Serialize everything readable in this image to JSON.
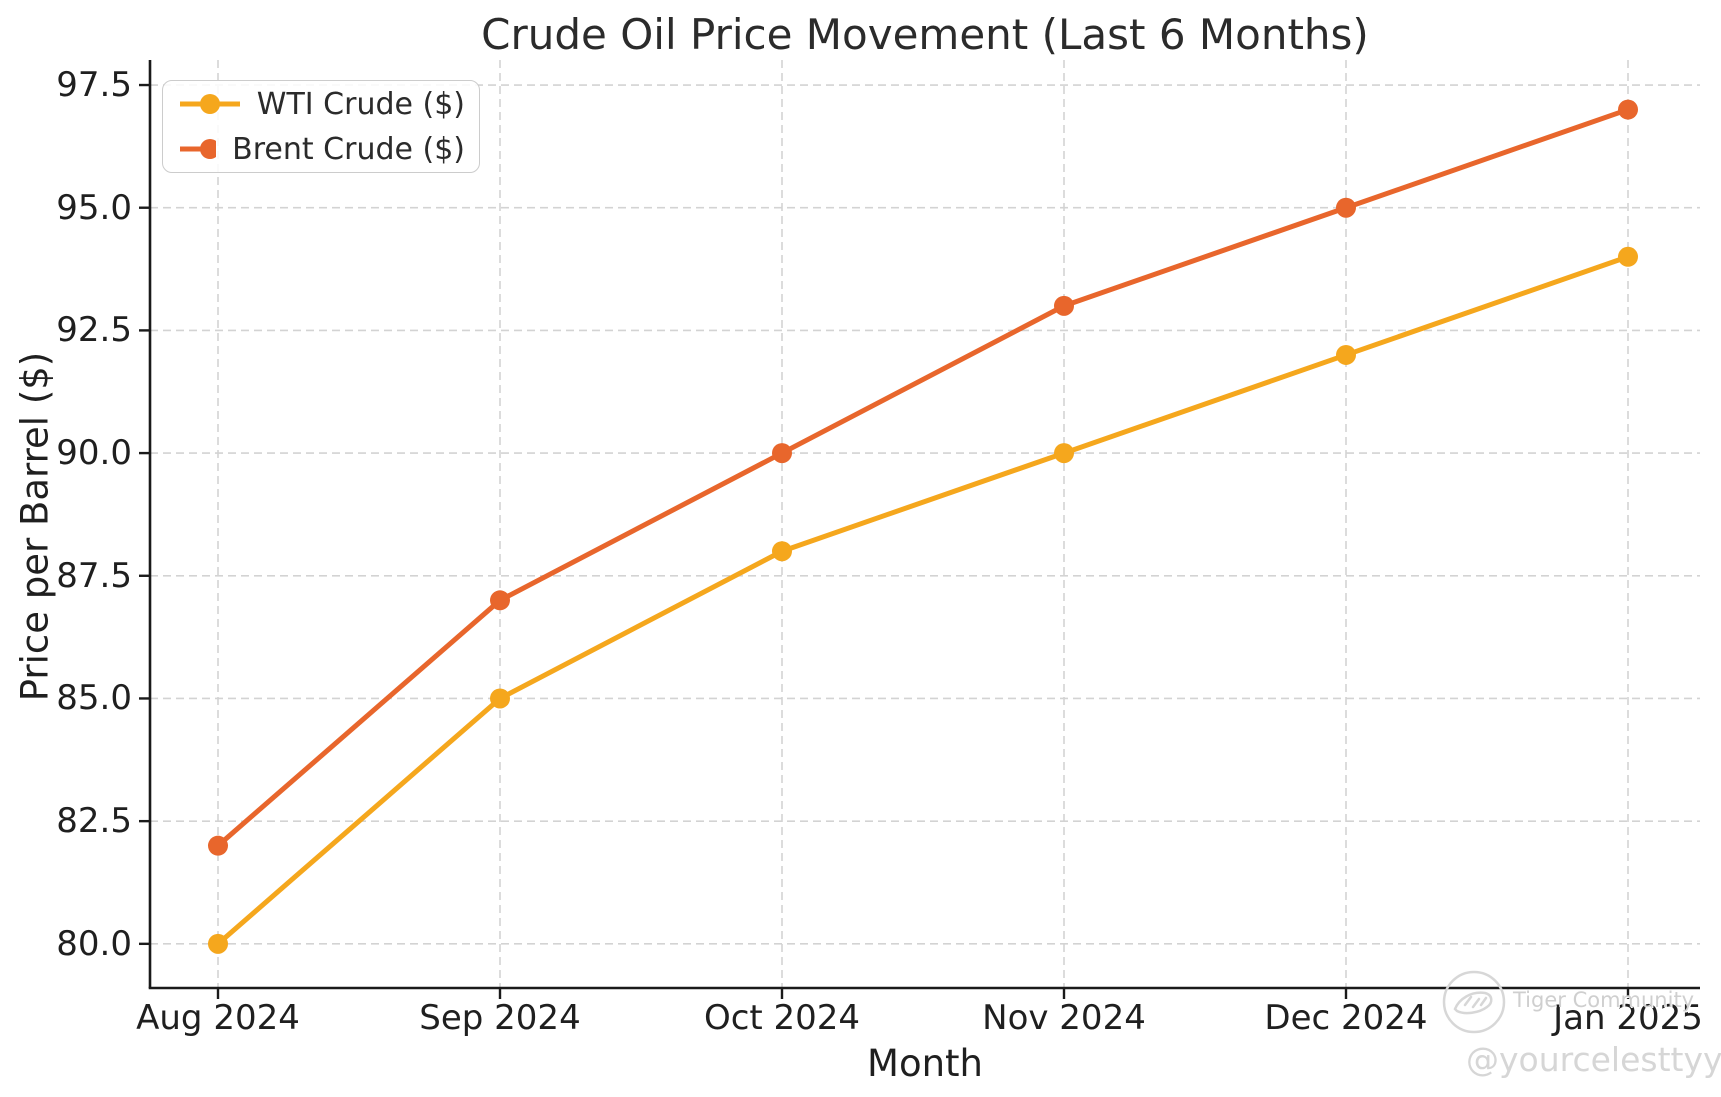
{
  "figure": {
    "title": "Crude Oil Price Movement (Last 6 Months)",
    "xlabel": "Month",
    "ylabel": "Price per Barrel ($)"
  },
  "chart_data": {
    "type": "line",
    "title": "Crude Oil Price Movement (Last 6 Months)",
    "xlabel": "Month",
    "ylabel": "Price per Barrel ($)",
    "categories": [
      "Aug 2024",
      "Sep 2024",
      "Oct 2024",
      "Nov 2024",
      "Dec 2024",
      "Jan 2025"
    ],
    "series": [
      {
        "name": "WTI Crude ($)",
        "color": "#F5A71D",
        "values": [
          80,
          85,
          88,
          90,
          92,
          94
        ]
      },
      {
        "name": "Brent Crude ($)",
        "color": "#E8662C",
        "values": [
          82,
          87,
          90,
          93,
          95,
          97
        ]
      }
    ],
    "yticks": [
      80.0,
      82.5,
      85.0,
      87.5,
      90.0,
      92.5,
      95.0,
      97.5
    ],
    "ytick_labels": [
      "80.0",
      "82.5",
      "85.0",
      "87.5",
      "90.0",
      "92.5",
      "95.0",
      "97.5"
    ],
    "ylim": [
      79.1,
      98.01
    ],
    "grid": true,
    "grid_style": "dashed",
    "legend_position": "upper left",
    "marker": "circle"
  },
  "style_colors": {
    "grid": "#d3d3d3",
    "spine": "#1a1a1a",
    "tick_text": "#1f1f1f",
    "watermark": "#d4d4d4"
  },
  "watermark": {
    "logo_icon": "tiger-logo",
    "community": "Tiger Community",
    "handle": "@yourcelesttyy"
  }
}
